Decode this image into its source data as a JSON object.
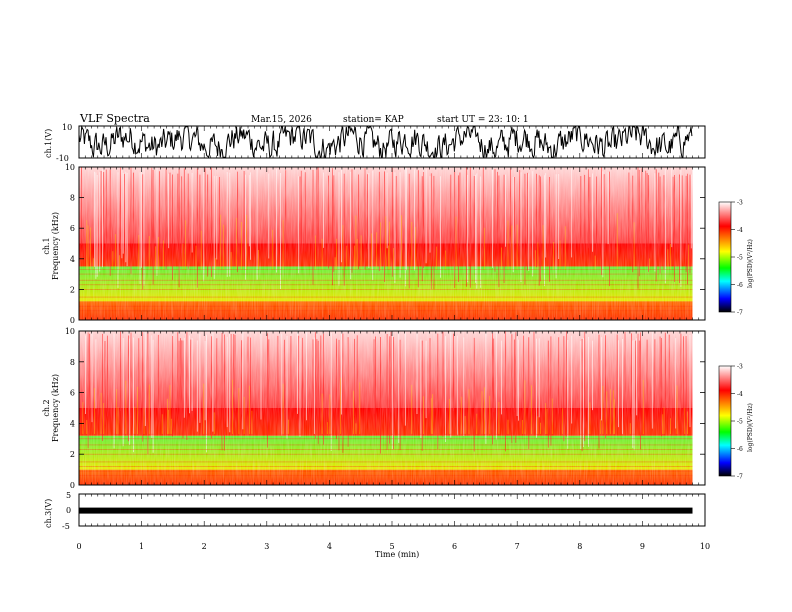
{
  "header": {
    "title": "VLF Spectra",
    "date": "Mar.15, 2026",
    "station": "station= KAP",
    "start": "start  UT =   23: 10: 1"
  },
  "colorbar": {
    "label": "log(PSD)(V²/Hz)",
    "ticks": [
      "-3",
      "-4",
      "-5",
      "-6",
      "-7"
    ],
    "stops": [
      "#ffffff",
      "#ff0000",
      "#ffff00",
      "#00ff00",
      "#00ffff",
      "#0000ff",
      "#000000"
    ]
  },
  "chart_data": [
    {
      "type": "line",
      "title": "",
      "ylabel": "ch.1(V)",
      "xlabel": "",
      "xlim": [
        0,
        10
      ],
      "ylim": [
        -10,
        10
      ],
      "ytick_labels": [
        "10",
        "-10"
      ],
      "description_series": "dense oscillating waveform spanning most of the range",
      "color": "#000000"
    },
    {
      "type": "heatmap",
      "title": "",
      "ylabel": "ch.1\nFrequency  (kHz)",
      "ylabel_lines": [
        "ch.1",
        "Frequency  (kHz)"
      ],
      "xlim": [
        0,
        10
      ],
      "ylim": [
        0,
        10
      ],
      "ytick_labels": [
        "0",
        "2",
        "4",
        "6",
        "8",
        "10"
      ],
      "data_extent_x": [
        0,
        9.8
      ],
      "color_bands_khz": [
        {
          "from": 0,
          "to": 1.2,
          "color": "red-yellow"
        },
        {
          "from": 1.2,
          "to": 3.5,
          "color": "green-yellow"
        },
        {
          "from": 3.5,
          "to": 5,
          "color": "red"
        },
        {
          "from": 5,
          "to": 10,
          "color": "white-red"
        }
      ]
    },
    {
      "type": "heatmap",
      "title": "",
      "ylabel_lines": [
        "ch.2",
        "Frequency  (kHz)"
      ],
      "xlim": [
        0,
        10
      ],
      "ylim": [
        0,
        10
      ],
      "ytick_labels": [
        "0",
        "2",
        "4",
        "6",
        "8",
        "10"
      ],
      "data_extent_x": [
        0,
        9.8
      ],
      "color_bands_khz": [
        {
          "from": 0,
          "to": 1,
          "color": "red-yellow"
        },
        {
          "from": 1,
          "to": 3.2,
          "color": "green-yellow"
        },
        {
          "from": 3.2,
          "to": 5,
          "color": "red"
        },
        {
          "from": 5,
          "to": 10,
          "color": "white-red"
        }
      ]
    },
    {
      "type": "line",
      "title": "",
      "ylabel": "ch.3(V)",
      "xlabel": "Time  (min)",
      "xlim": [
        0,
        10
      ],
      "ylim": [
        -5,
        5
      ],
      "ytick_labels": [
        "5",
        "0",
        "-5"
      ],
      "level_value": -0.2,
      "color": "#000000",
      "xtick_labels": [
        "0",
        "1",
        "2",
        "3",
        "4",
        "5",
        "6",
        "7",
        "8",
        "9",
        "10"
      ]
    }
  ]
}
